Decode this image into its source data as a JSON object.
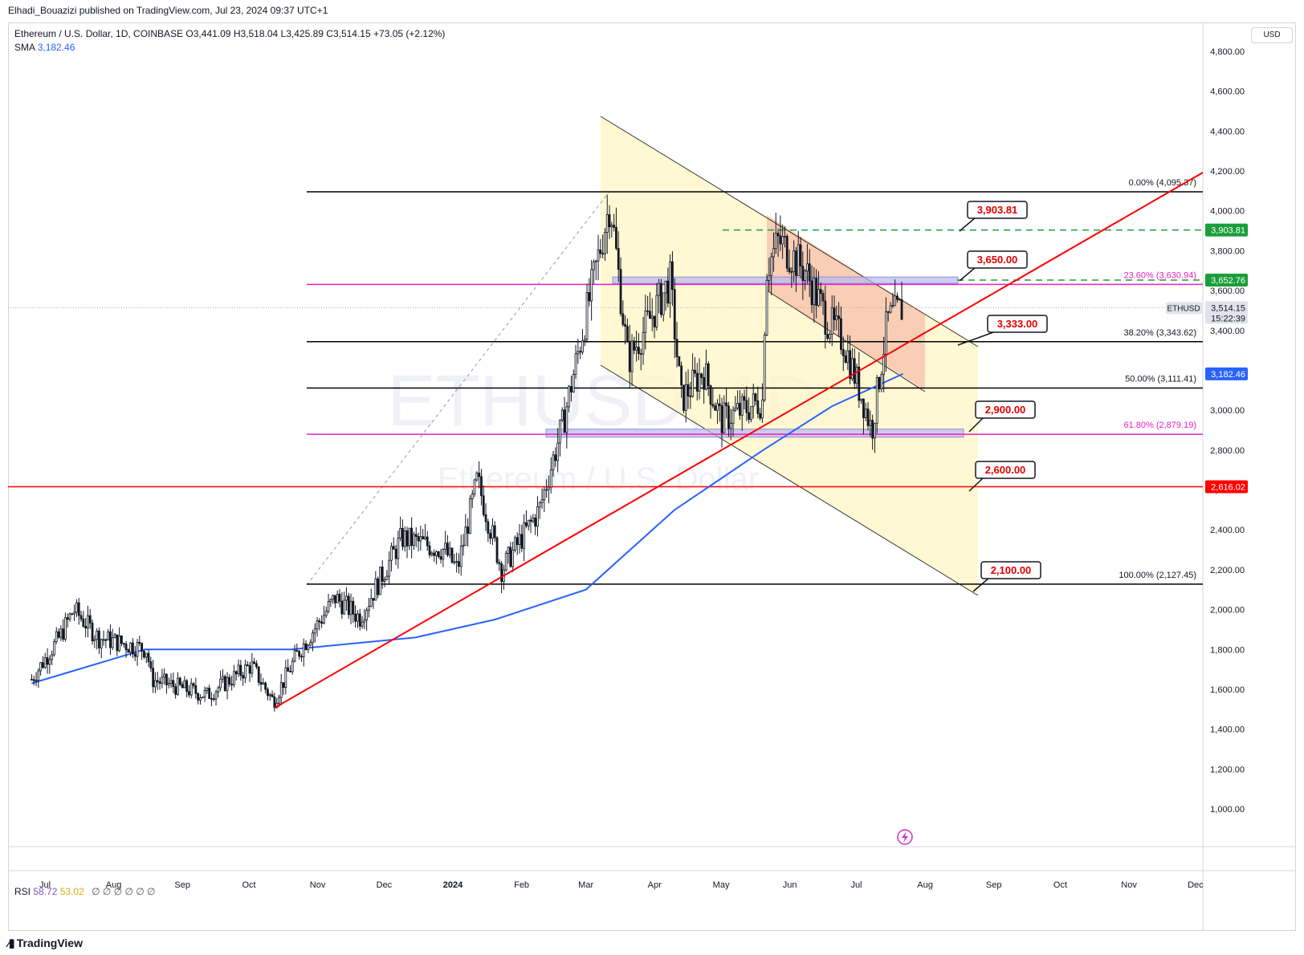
{
  "header": {
    "published": "Elhadi_Bouazizi published on TradingView.com, Jul 23, 2024 09:37 UTC+1"
  },
  "legend": {
    "symbol": "Ethereum / U.S. Dollar, 1D, COINBASE",
    "open": "O3,441.09",
    "high": "H3,518.04",
    "low": "L3,425.89",
    "close": "C3,514.15",
    "change": "+73.05 (+2.12%)",
    "sma_label": "SMA",
    "sma_value": "3,182.46"
  },
  "watermark": {
    "symbol": "ETHUSD, 1D",
    "name": "Ethereum / U.S. Dollar"
  },
  "rsi": {
    "label": "RSI",
    "value1": "58.72",
    "value2": "53.02",
    "nulls": "∅ ∅ ∅ ∅ ∅ ∅"
  },
  "footer": {
    "brand": "TradingView"
  },
  "currency": "USD",
  "colors": {
    "fib": "#000000",
    "fib_magenta": "#e91ec4",
    "trend_red": "#ff0000",
    "sma_blue": "#2962ff",
    "channel_fill": "#fff6c8",
    "channel_red_fill": "#f7c3ac",
    "green_dashed": "#1a9e3a",
    "candle": "#131722"
  },
  "chart_data": {
    "type": "candlestick",
    "symbol": "ETHUSD",
    "interval": "1D",
    "ylim": [
      800,
      4900
    ],
    "y_ticks": [
      1000,
      1200,
      1400,
      1600,
      1800,
      2000,
      2200,
      2400,
      2600,
      2800,
      3000,
      3200,
      3400,
      3600,
      3800,
      4000,
      4200,
      4400,
      4600,
      4800
    ],
    "y_tick_labels": [
      "1,000.00",
      "1,200.00",
      "1,400.00",
      "1,600.00",
      "1,800.00",
      "2,000.00",
      "2,200.00",
      "2,400.00",
      "2,600.00",
      "2,800.00",
      "3,000.00",
      "3,200.00",
      "3,400.00",
      "3,600.00",
      "3,800.00",
      "4,000.00",
      "4,200.00",
      "4,400.00",
      "4,600.00",
      "4,800.00"
    ],
    "x_labels": [
      {
        "label": "Jul",
        "date": "2023-07-01"
      },
      {
        "label": "Aug",
        "date": "2023-08-01"
      },
      {
        "label": "Sep",
        "date": "2023-09-01"
      },
      {
        "label": "Oct",
        "date": "2023-10-01"
      },
      {
        "label": "Nov",
        "date": "2023-11-01"
      },
      {
        "label": "Dec",
        "date": "2023-12-01"
      },
      {
        "label": "2024",
        "date": "2024-01-01"
      },
      {
        "label": "Feb",
        "date": "2024-02-01"
      },
      {
        "label": "Mar",
        "date": "2024-03-01"
      },
      {
        "label": "Apr",
        "date": "2024-04-01"
      },
      {
        "label": "May",
        "date": "2024-05-01"
      },
      {
        "label": "Jun",
        "date": "2024-06-01"
      },
      {
        "label": "Jul",
        "date": "2024-07-01"
      },
      {
        "label": "Aug",
        "date": "2024-08-01"
      },
      {
        "label": "Sep",
        "date": "2024-09-01"
      },
      {
        "label": "Oct",
        "date": "2024-10-01"
      },
      {
        "label": "Nov",
        "date": "2024-11-01"
      },
      {
        "label": "Dec",
        "date": "2024-12-01"
      }
    ],
    "price_keypoints": [
      {
        "date": "2023-06-25",
        "price": 1650
      },
      {
        "date": "2023-07-08",
        "price": 1870
      },
      {
        "date": "2023-07-14",
        "price": 2000
      },
      {
        "date": "2023-07-25",
        "price": 1860
      },
      {
        "date": "2023-08-16",
        "price": 1800
      },
      {
        "date": "2023-08-18",
        "price": 1650
      },
      {
        "date": "2023-09-12",
        "price": 1570
      },
      {
        "date": "2023-10-02",
        "price": 1720
      },
      {
        "date": "2023-10-12",
        "price": 1540
      },
      {
        "date": "2023-10-23",
        "price": 1780
      },
      {
        "date": "2023-11-09",
        "price": 2060
      },
      {
        "date": "2023-11-20",
        "price": 1960
      },
      {
        "date": "2023-12-09",
        "price": 2360
      },
      {
        "date": "2023-12-28",
        "price": 2300
      },
      {
        "date": "2024-01-03",
        "price": 2200
      },
      {
        "date": "2024-01-12",
        "price": 2650
      },
      {
        "date": "2024-01-23",
        "price": 2200
      },
      {
        "date": "2024-02-09",
        "price": 2500
      },
      {
        "date": "2024-02-20",
        "price": 2950
      },
      {
        "date": "2024-03-12",
        "price": 4050
      },
      {
        "date": "2024-03-20",
        "price": 3250
      },
      {
        "date": "2024-04-08",
        "price": 3650
      },
      {
        "date": "2024-04-13",
        "price": 3050
      },
      {
        "date": "2024-04-23",
        "price": 3200
      },
      {
        "date": "2024-05-01",
        "price": 2950
      },
      {
        "date": "2024-05-20",
        "price": 3050
      },
      {
        "date": "2024-05-21",
        "price": 3700
      },
      {
        "date": "2024-05-27",
        "price": 3850
      },
      {
        "date": "2024-06-08",
        "price": 3700
      },
      {
        "date": "2024-06-18",
        "price": 3450
      },
      {
        "date": "2024-06-25",
        "price": 3350
      },
      {
        "date": "2024-07-04",
        "price": 3050
      },
      {
        "date": "2024-07-08",
        "price": 2900
      },
      {
        "date": "2024-07-15",
        "price": 3450
      },
      {
        "date": "2024-07-22",
        "price": 3514
      }
    ],
    "sma": [
      {
        "date": "2023-06-25",
        "value": 1630
      },
      {
        "date": "2023-08-15",
        "value": 1800
      },
      {
        "date": "2023-10-20",
        "value": 1800
      },
      {
        "date": "2023-12-15",
        "value": 1860
      },
      {
        "date": "2024-01-20",
        "value": 1950
      },
      {
        "date": "2024-03-01",
        "value": 2100
      },
      {
        "date": "2024-04-10",
        "value": 2500
      },
      {
        "date": "2024-05-20",
        "value": 2800
      },
      {
        "date": "2024-06-20",
        "value": 3020
      },
      {
        "date": "2024-07-22",
        "value": 3182
      }
    ],
    "fib_levels": [
      {
        "label": "0.00% (4,095.37)",
        "value": 4095.37,
        "color": "#000000"
      },
      {
        "label": "23.60% (3,630.94)",
        "value": 3630.94,
        "color": "#e91ec4"
      },
      {
        "label": "38.20% (3,343.62)",
        "value": 3343.62,
        "color": "#000000"
      },
      {
        "label": "50.00% (3,111.41)",
        "value": 3111.41,
        "color": "#000000"
      },
      {
        "label": "61.80% (2,879.19)",
        "value": 2879.19,
        "color": "#e91ec4"
      },
      {
        "label": "100.00% (2,127.45)",
        "value": 2127.45,
        "color": "#000000"
      }
    ],
    "callouts": [
      "3,903.81",
      "3,650.00",
      "3,333.00",
      "2,900.00",
      "2,600.00",
      "2,100.00"
    ],
    "price_tags": [
      {
        "label": "3,903.81",
        "value": 3903.81,
        "color": "#1a9e3a"
      },
      {
        "label": "3,652.76",
        "value": 3652.76,
        "color": "#1a9e3a"
      },
      {
        "label": "3,182.46",
        "value": 3182.46,
        "color": "#2962ff"
      },
      {
        "label": "2,616.02",
        "value": 2616.02,
        "color": "#ff0000"
      }
    ],
    "last_price": {
      "symbol": "ETHUSD",
      "price": "3,514.15",
      "countdown": "15:22:39",
      "value": 3514.15
    },
    "horizontal_red": 2616.02
  }
}
